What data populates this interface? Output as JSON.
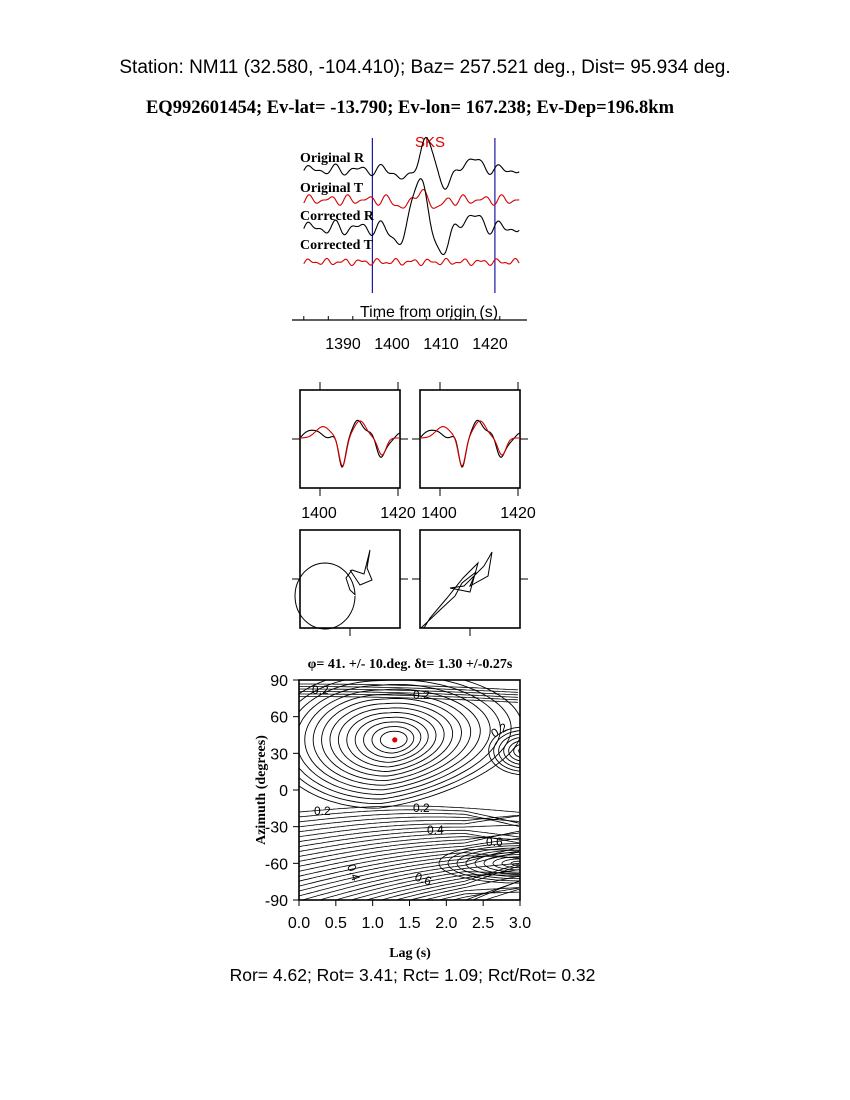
{
  "header": {
    "station_line": "Station: NM11 (32.580, -104.410); Baz=  257.521 deg., Dist=   95.934 deg.",
    "event_line": "EQ992601454; Ev-lat= -13.790; Ev-lon= 167.238; Ev-Dep=196.8km"
  },
  "traces_panel": {
    "phase_label": "SKS",
    "trace_labels": [
      "Original R",
      "Original T",
      "Corrected R",
      "Corrected T"
    ],
    "xlabel": "Time from origin (s)",
    "x_ticks": [
      "1390",
      "1400",
      "1410",
      "1420"
    ],
    "window_markers": [
      1396,
      1421
    ]
  },
  "waveform_panels": {
    "x_ticks_left": [
      "1400",
      "1420"
    ],
    "x_ticks_right": [
      "1400",
      "1420"
    ]
  },
  "colors": {
    "radial": "#000000",
    "transverse": "#d40000",
    "window": "#1a1aa6",
    "min_marker": "#e00000"
  },
  "chart_data": {
    "type": "contour",
    "title": "φ= 41. +/- 10.deg. δt= 1.30 +/-0.27s",
    "xlabel": "Lag (s)",
    "ylabel": "Azimuth (degrees)",
    "xlim": [
      0,
      3
    ],
    "ylim": [
      -90,
      90
    ],
    "x_ticks": [
      "0.0",
      "0.5",
      "1.0",
      "1.5",
      "2.0",
      "2.5",
      "3.0"
    ],
    "y_ticks": [
      "90",
      "60",
      "30",
      "0",
      "-30",
      "-60",
      "-90"
    ],
    "minimum": {
      "lag": 1.3,
      "phi": 41
    },
    "contour_labels": [
      "0.2",
      "0.2",
      "0.2",
      "0.2",
      "0.2",
      "0.4",
      "0.6",
      "0.4",
      "0.6"
    ]
  },
  "footer": {
    "ratios": "Ror= 4.62; Rot= 3.41; Rct= 1.09; Rct/Rot= 0.32"
  }
}
